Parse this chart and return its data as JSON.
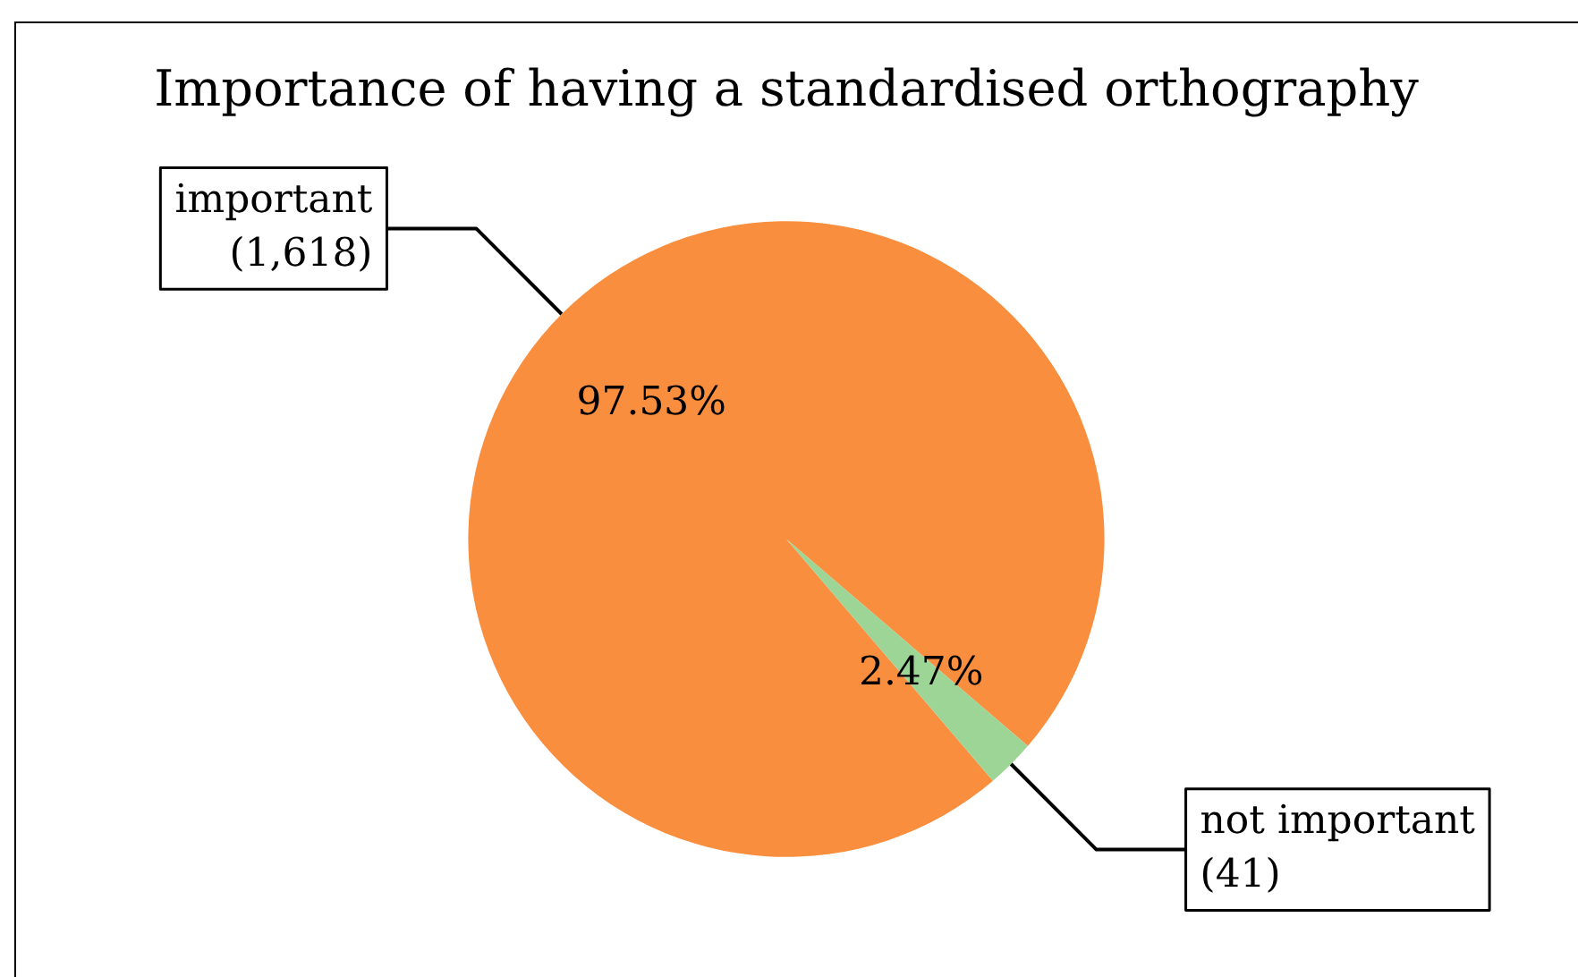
{
  "chart_data": {
    "type": "pie",
    "title": "Importance of having a standardised orthography",
    "categories": [
      "important\n(1,618)",
      "not important\n(41)"
    ],
    "values": [
      97.53,
      2.47
    ],
    "colors": [
      "#f98e3f",
      "#9dd597"
    ],
    "value_labels": [
      "97.53%",
      "2.47%"
    ],
    "legend": false
  }
}
